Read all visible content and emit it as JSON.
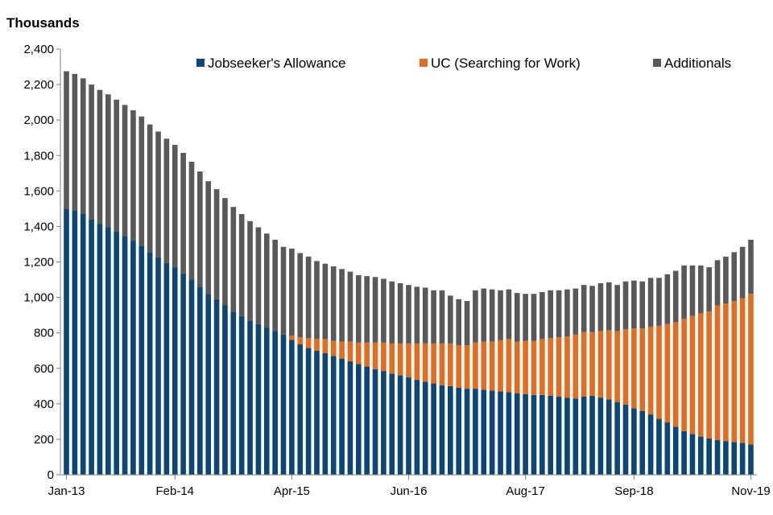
{
  "chart_data": {
    "type": "stacked-bar",
    "title": "",
    "ylabel": "Thousands",
    "xlabel": "",
    "ylim": [
      0,
      2400
    ],
    "yticks": [
      0,
      200,
      400,
      600,
      800,
      1000,
      1200,
      1400,
      1600,
      1800,
      2000,
      2200,
      2400
    ],
    "ytick_labels": [
      "0",
      "200",
      "400",
      "600",
      "800",
      "1,000",
      "1,200",
      "1,400",
      "1,600",
      "1,800",
      "2,000",
      "2,200",
      "2,400"
    ],
    "grid": false,
    "legend_position": "top",
    "colors": {
      "jsa": "#0b4677",
      "uc": "#e46c20",
      "additionals": "#595959"
    },
    "start_month": "Jan-13",
    "x_tick_labels": [
      {
        "index": 0,
        "label": "Jan-13"
      },
      {
        "index": 13,
        "label": "Feb-14"
      },
      {
        "index": 27,
        "label": "Apr-15"
      },
      {
        "index": 41,
        "label": "Jun-16"
      },
      {
        "index": 55,
        "label": "Aug-17"
      },
      {
        "index": 68,
        "label": "Sep-18"
      },
      {
        "index": 82,
        "label": "Nov-19"
      }
    ],
    "series": [
      {
        "key": "jsa",
        "name": "Jobseeker's Allowance",
        "values": [
          1500,
          1490,
          1470,
          1440,
          1415,
          1395,
          1370,
          1345,
          1320,
          1290,
          1255,
          1225,
          1195,
          1170,
          1135,
          1100,
          1060,
          1020,
          990,
          955,
          920,
          895,
          870,
          850,
          830,
          810,
          790,
          760,
          735,
          715,
          700,
          685,
          670,
          655,
          640,
          625,
          610,
          595,
          585,
          570,
          560,
          550,
          535,
          525,
          515,
          505,
          500,
          490,
          485,
          485,
          480,
          475,
          470,
          465,
          460,
          455,
          450,
          450,
          445,
          440,
          435,
          430,
          440,
          445,
          435,
          425,
          410,
          395,
          375,
          360,
          340,
          315,
          295,
          270,
          245,
          230,
          215,
          205,
          195,
          190,
          185,
          180,
          170
        ]
      },
      {
        "key": "uc",
        "name": "UC (Searching for Work)",
        "values": [
          0,
          0,
          0,
          0,
          0,
          0,
          0,
          0,
          0,
          0,
          0,
          0,
          0,
          0,
          0,
          0,
          0,
          0,
          0,
          0,
          0,
          0,
          0,
          0,
          0,
          0,
          0,
          25,
          40,
          55,
          65,
          80,
          85,
          95,
          110,
          120,
          135,
          150,
          160,
          170,
          180,
          190,
          205,
          215,
          225,
          235,
          240,
          240,
          245,
          260,
          270,
          275,
          290,
          300,
          290,
          300,
          305,
          315,
          325,
          335,
          345,
          360,
          365,
          360,
          375,
          390,
          400,
          425,
          450,
          465,
          495,
          525,
          555,
          590,
          635,
          665,
          695,
          715,
          760,
          775,
          795,
          815,
          850
        ]
      },
      {
        "key": "additionals",
        "name": "Additionals",
        "values": [
          775,
          770,
          765,
          760,
          755,
          750,
          745,
          740,
          735,
          730,
          720,
          710,
          700,
          690,
          680,
          665,
          650,
          635,
          620,
          605,
          590,
          575,
          560,
          545,
          530,
          515,
          495,
          490,
          475,
          460,
          440,
          425,
          420,
          410,
          395,
          380,
          375,
          370,
          360,
          350,
          340,
          330,
          320,
          315,
          300,
          300,
          270,
          260,
          250,
          295,
          300,
          295,
          280,
          280,
          275,
          265,
          265,
          265,
          270,
          265,
          265,
          260,
          265,
          260,
          270,
          270,
          260,
          270,
          270,
          265,
          275,
          270,
          280,
          290,
          300,
          285,
          270,
          250,
          255,
          265,
          275,
          290,
          305
        ]
      }
    ]
  }
}
